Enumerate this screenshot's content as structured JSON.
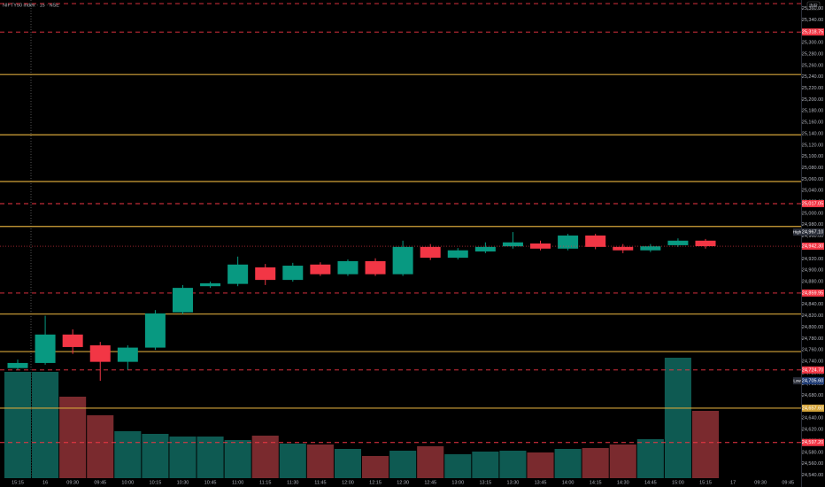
{
  "chart_data": {
    "type": "candlestick",
    "symbol": "NIFTY50 index · 15 · NSE",
    "currency": "INR",
    "categories": [
      "15:15",
      "16",
      "09:30",
      "09:45",
      "10:00",
      "10:15",
      "10:30",
      "10:45",
      "11:00",
      "11:15",
      "11:30",
      "11:45",
      "12:00",
      "12:15",
      "12:30",
      "12:45",
      "13:00",
      "13:15",
      "13:30",
      "13:45",
      "14:00",
      "14:15",
      "14:30",
      "14:45",
      "15:00",
      "15:15"
    ],
    "future_categories": [
      "17",
      "09:30",
      "09:45"
    ],
    "open": [
      24728,
      24737,
      24787,
      24768,
      24739,
      24764,
      24826,
      24872,
      24876,
      24905,
      24883,
      24910,
      24893,
      24916,
      24893,
      24941,
      24922,
      24933,
      24942,
      24947,
      24938,
      24961,
      24941,
      24935,
      24944,
      24952
    ],
    "high": [
      24743,
      24820,
      24796,
      24774,
      24768,
      24830,
      24874,
      24880,
      24924,
      24911,
      24913,
      24914,
      24919,
      24921,
      24952,
      24946,
      24939,
      24949,
      24967.1,
      24952,
      24964,
      24964,
      24946,
      24946,
      24956,
      24955
    ],
    "low": [
      24725,
      24734,
      24753,
      24705.6,
      24725,
      24760,
      24823,
      24869,
      24872,
      24874,
      24880,
      24890,
      24890,
      24890,
      24890,
      24918,
      24919,
      24930,
      24938,
      24935,
      24935,
      24937,
      24930,
      24932,
      24941,
      24938
    ],
    "close": [
      24737,
      24787,
      24765,
      24739,
      24764,
      24824,
      24869,
      24877,
      24910,
      24883,
      24908,
      24893,
      24916,
      24893,
      24941,
      24922,
      24935,
      24941,
      24949,
      24938,
      24961,
      24941,
      24935,
      24942,
      24952,
      24942.3
    ],
    "volume": [
      120,
      120,
      92,
      71,
      53,
      50,
      47,
      47,
      43,
      48,
      39,
      38,
      33,
      25,
      31,
      36,
      27,
      30,
      31,
      29,
      33,
      34,
      38,
      44,
      136,
      76
    ],
    "up_color": "#089981",
    "down_color": "#f23645",
    "volume_up_color": "#0e5a52",
    "volume_down_color": "#7a2a2e",
    "ylim": [
      24519,
      25375
    ],
    "vlim": [
      0,
      160
    ],
    "yticks": [
      {
        "value": 24540,
        "label": "24,540.00"
      },
      {
        "value": 24560,
        "label": "24,560.00"
      },
      {
        "value": 24580,
        "label": "24,580.00"
      },
      {
        "value": 24600,
        "label": "24,600.00"
      },
      {
        "value": 24620,
        "label": "24,620.00"
      },
      {
        "value": 24640,
        "label": "24,640.00"
      },
      {
        "value": 24660,
        "label": "24,660.00"
      },
      {
        "value": 24680,
        "label": "24,680.00"
      },
      {
        "value": 24700,
        "label": "24,700.00"
      },
      {
        "value": 24720,
        "label": "24,720.00"
      },
      {
        "value": 24740,
        "label": "24,740.00"
      },
      {
        "value": 24760,
        "label": "24,760.00"
      },
      {
        "value": 24780,
        "label": "24,780.00"
      },
      {
        "value": 24800,
        "label": "24,800.00"
      },
      {
        "value": 24820,
        "label": "24,820.00"
      },
      {
        "value": 24840,
        "label": "24,840.00"
      },
      {
        "value": 24860,
        "label": "24,860.00"
      },
      {
        "value": 24880,
        "label": "24,880.00"
      },
      {
        "value": 24900,
        "label": "24,900.00"
      },
      {
        "value": 24920,
        "label": "24,920.00"
      },
      {
        "value": 24940,
        "label": "24,940.00"
      },
      {
        "value": 24960,
        "label": "24,960.00"
      },
      {
        "value": 24980,
        "label": "24,980.00"
      },
      {
        "value": 25000,
        "label": "25,000.00"
      },
      {
        "value": 25020,
        "label": "25,020.00"
      },
      {
        "value": 25040,
        "label": "25,040.00"
      },
      {
        "value": 25060,
        "label": "25,060.00"
      },
      {
        "value": 25080,
        "label": "25,080.00"
      },
      {
        "value": 25100,
        "label": "25,100.00"
      },
      {
        "value": 25120,
        "label": "25,120.00"
      },
      {
        "value": 25140,
        "label": "25,140.00"
      },
      {
        "value": 25160,
        "label": "25,160.00"
      },
      {
        "value": 25180,
        "label": "25,180.00"
      },
      {
        "value": 25200,
        "label": "25,200.00"
      },
      {
        "value": 25220,
        "label": "25,220.00"
      },
      {
        "value": 25240,
        "label": "25,240.00"
      },
      {
        "value": 25260,
        "label": "25,260.00"
      },
      {
        "value": 25280,
        "label": "25,280.00"
      },
      {
        "value": 25300,
        "label": "25,300.00"
      },
      {
        "value": 25320,
        "label": "25,320.00"
      },
      {
        "value": 25340,
        "label": "25,340.00"
      },
      {
        "value": 25360,
        "label": "25,360.00"
      }
    ],
    "levels": [
      {
        "value": 25368.6,
        "style": "dashed"
      },
      {
        "value": 25318.75,
        "label": "25,318.75",
        "style": "dashed"
      },
      {
        "value": 25244,
        "style": "solid"
      },
      {
        "value": 25138,
        "style": "solid"
      },
      {
        "value": 25056,
        "style": "solid"
      },
      {
        "value": 25017.05,
        "label": "25,017.05",
        "style": "dashed"
      },
      {
        "value": 24977,
        "style": "solid"
      },
      {
        "value": 24859.95,
        "label": "24,859.95",
        "style": "dashed"
      },
      {
        "value": 24823,
        "style": "solid"
      },
      {
        "value": 24757,
        "style": "solid"
      },
      {
        "value": 24724.7,
        "label": "24,724.70",
        "style": "dashed"
      },
      {
        "value": 24657.6,
        "label": "24,657.60",
        "style": "solid"
      },
      {
        "value": 24597.2,
        "label": "24,597.20",
        "style": "dashed"
      }
    ],
    "high_marker": {
      "text": "High",
      "value": 24967.1,
      "label": "24,967.10"
    },
    "low_marker": {
      "text": "Low",
      "value": 24705.6,
      "label": "24,705.60"
    },
    "last_price": {
      "value": 24942.3,
      "label": "24,942.30"
    }
  }
}
